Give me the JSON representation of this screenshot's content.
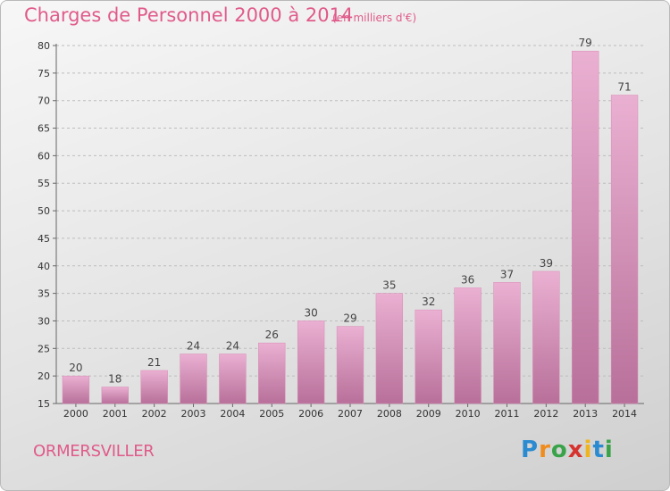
{
  "header": {
    "title": "Charges de Personnel 2000 à 2014",
    "subtitle": "(en milliers d'€)"
  },
  "footer": {
    "place": "ORMERSVILLER",
    "logo_letters": [
      "P",
      "r",
      "o",
      "x",
      "i",
      "t",
      "i"
    ],
    "logo_colors": [
      "#2a8bd1",
      "#f08c1e",
      "#3aa34a",
      "#d6322e",
      "#f0b41e",
      "#2a8bd1",
      "#3aa34a"
    ]
  },
  "chart_data": {
    "type": "bar",
    "title": "Charges de Personnel 2000 à 2014",
    "subtitle": "(en milliers d'€)",
    "categories": [
      "2000",
      "2001",
      "2002",
      "2003",
      "2004",
      "2005",
      "2006",
      "2007",
      "2008",
      "2009",
      "2010",
      "2011",
      "2012",
      "2013",
      "2014"
    ],
    "values": [
      20,
      18,
      21,
      24,
      24,
      26,
      30,
      29,
      35,
      32,
      36,
      37,
      39,
      79,
      71
    ],
    "ylim": [
      15,
      80
    ],
    "yticks": [
      15,
      20,
      25,
      30,
      35,
      40,
      45,
      50,
      55,
      60,
      65,
      70,
      75,
      80
    ],
    "grid": true,
    "bar_color": "#d98ab5",
    "bar_color_light": "#eab0d2"
  }
}
